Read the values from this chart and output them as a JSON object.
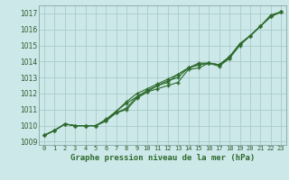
{
  "title": "Graphe pression niveau de la mer (hPa)",
  "xlabel_hours": [
    0,
    1,
    2,
    3,
    4,
    5,
    6,
    7,
    8,
    9,
    10,
    11,
    12,
    13,
    14,
    15,
    16,
    17,
    18,
    19,
    20,
    21,
    22,
    23
  ],
  "ylim": [
    1008.8,
    1017.5
  ],
  "yticks": [
    1009,
    1010,
    1011,
    1012,
    1013,
    1014,
    1015,
    1016,
    1017
  ],
  "xlim": [
    -0.5,
    23.5
  ],
  "bg_color": "#cce8e8",
  "grid_color": "#aacccc",
  "line_color": "#2d6a2d",
  "tick_color": "#2d5a2d",
  "line1": [
    1009.4,
    1009.7,
    1010.1,
    1010.0,
    1010.0,
    1010.0,
    1010.3,
    1010.8,
    1011.0,
    1011.7,
    1012.1,
    1012.3,
    1012.5,
    1012.7,
    1013.5,
    1013.6,
    1013.9,
    1013.8,
    1014.2,
    1015.1,
    1015.6,
    1016.2,
    1016.8,
    1017.1
  ],
  "line2": [
    1009.4,
    1009.7,
    1010.1,
    1010.0,
    1010.0,
    1010.0,
    1010.4,
    1010.9,
    1011.4,
    1011.8,
    1012.1,
    1012.5,
    1012.7,
    1013.2,
    1013.6,
    1013.9,
    1013.9,
    1013.7,
    1014.2,
    1015.0,
    1015.6,
    1016.2,
    1016.9,
    1017.1
  ],
  "line3": [
    1009.4,
    1009.7,
    1010.1,
    1010.0,
    1010.0,
    1010.0,
    1010.3,
    1010.8,
    1011.1,
    1011.8,
    1012.2,
    1012.5,
    1012.8,
    1013.0,
    1013.6,
    1013.8,
    1013.9,
    1013.8,
    1014.3,
    1015.1,
    1015.6,
    1016.2,
    1016.8,
    1017.1
  ],
  "line4": [
    1009.4,
    1009.7,
    1010.1,
    1010.0,
    1010.0,
    1010.0,
    1010.3,
    1010.9,
    1011.5,
    1012.0,
    1012.3,
    1012.6,
    1012.9,
    1013.2,
    1013.6,
    1013.8,
    1013.9,
    1013.8,
    1014.3,
    1015.1,
    1015.6,
    1016.2,
    1016.8,
    1017.1
  ]
}
